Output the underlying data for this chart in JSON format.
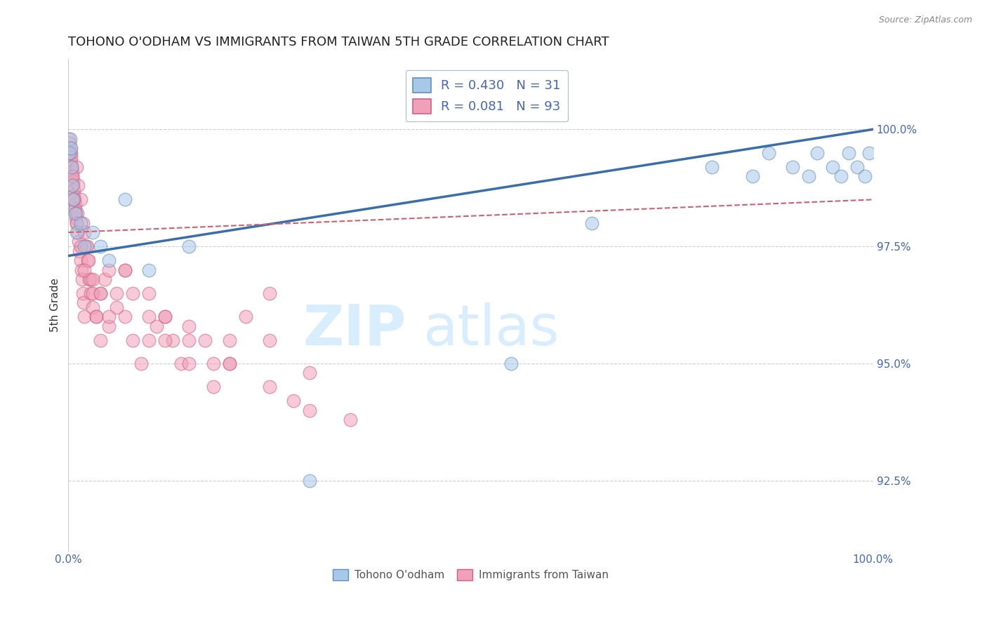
{
  "title": "TOHONO O'ODHAM VS IMMIGRANTS FROM TAIWAN 5TH GRADE CORRELATION CHART",
  "source_text": "Source: ZipAtlas.com",
  "ylabel": "5th Grade",
  "yright_ticks": [
    92.5,
    95.0,
    97.5,
    100.0
  ],
  "xmin": 0.0,
  "xmax": 100.0,
  "ymin": 91.0,
  "ymax": 101.5,
  "blue_color": "#A8C8E8",
  "pink_color": "#F0A0B8",
  "blue_edge_color": "#6090C0",
  "pink_edge_color": "#D06080",
  "blue_line_color": "#3A6EAA",
  "pink_line_color": "#D06070",
  "grid_color": "#AAAACC",
  "title_color": "#222222",
  "tick_color": "#4466BB",
  "watermark_color": "#D8EEFF",
  "legend_blue_label": "R = 0.430   N = 31",
  "legend_pink_label": "R = 0.081   N = 93",
  "blue_scatter_x": [
    0.1,
    0.2,
    0.3,
    0.4,
    0.5,
    0.6,
    0.8,
    1.0,
    1.5,
    2.0,
    3.0,
    4.0,
    5.0,
    7.0,
    10.0,
    15.0,
    30.0,
    55.0,
    65.0,
    80.0,
    85.0,
    87.0,
    90.0,
    92.0,
    93.0,
    95.0,
    96.0,
    97.0,
    98.0,
    99.0,
    99.5
  ],
  "blue_scatter_y": [
    99.5,
    99.8,
    99.6,
    99.2,
    98.8,
    98.5,
    98.2,
    97.8,
    98.0,
    97.5,
    97.8,
    97.5,
    97.2,
    98.5,
    97.0,
    97.5,
    92.5,
    95.0,
    98.0,
    99.2,
    99.0,
    99.5,
    99.2,
    99.0,
    99.5,
    99.2,
    99.0,
    99.5,
    99.2,
    99.0,
    99.5
  ],
  "pink_scatter_x": [
    0.1,
    0.15,
    0.2,
    0.25,
    0.3,
    0.35,
    0.4,
    0.45,
    0.5,
    0.55,
    0.6,
    0.65,
    0.7,
    0.75,
    0.8,
    0.85,
    0.9,
    0.95,
    1.0,
    1.1,
    1.2,
    1.3,
    1.4,
    1.5,
    1.6,
    1.7,
    1.8,
    1.9,
    2.0,
    2.2,
    2.4,
    2.6,
    2.8,
    3.0,
    3.5,
    4.0,
    4.5,
    5.0,
    6.0,
    7.0,
    8.0,
    9.0,
    10.0,
    11.0,
    12.0,
    13.0,
    14.0,
    15.0,
    17.0,
    20.0,
    22.0,
    25.0,
    1.0,
    1.2,
    1.5,
    1.8,
    2.0,
    2.3,
    2.5,
    2.8,
    3.0,
    3.5,
    4.0,
    5.0,
    6.0,
    7.0,
    8.0,
    10.0,
    12.0,
    15.0,
    18.0,
    20.0,
    25.0,
    30.0,
    0.3,
    0.5,
    0.7,
    1.0,
    1.5,
    2.0,
    3.0,
    4.0,
    5.0,
    7.0,
    10.0,
    12.0,
    15.0,
    18.0,
    20.0,
    25.0,
    28.0,
    30.0,
    35.0
  ],
  "pink_scatter_y": [
    99.8,
    99.7,
    99.6,
    99.5,
    99.4,
    99.3,
    99.2,
    99.1,
    99.0,
    98.9,
    98.8,
    98.7,
    98.6,
    98.5,
    98.4,
    98.3,
    98.2,
    98.1,
    98.0,
    98.2,
    97.8,
    97.6,
    97.4,
    97.2,
    97.0,
    96.8,
    96.5,
    96.3,
    96.0,
    97.5,
    97.2,
    96.8,
    96.5,
    96.2,
    96.0,
    96.5,
    96.8,
    97.0,
    96.5,
    96.0,
    95.5,
    95.0,
    95.5,
    95.8,
    96.0,
    95.5,
    95.0,
    95.8,
    95.5,
    95.0,
    96.0,
    96.5,
    99.2,
    98.8,
    98.5,
    98.0,
    97.8,
    97.5,
    97.2,
    96.8,
    96.5,
    96.0,
    95.5,
    95.8,
    96.2,
    97.0,
    96.5,
    96.0,
    95.5,
    95.0,
    94.5,
    95.0,
    95.5,
    94.8,
    99.5,
    99.0,
    98.5,
    98.0,
    97.5,
    97.0,
    96.8,
    96.5,
    96.0,
    97.0,
    96.5,
    96.0,
    95.5,
    95.0,
    95.5,
    94.5,
    94.2,
    94.0,
    93.8
  ],
  "blue_trendline_x0": 0.0,
  "blue_trendline_x1": 100.0,
  "blue_trendline_y0": 97.3,
  "blue_trendline_y1": 100.0,
  "pink_trendline_x0": 0.0,
  "pink_trendline_x1": 100.0,
  "pink_trendline_y0": 97.8,
  "pink_trendline_y1": 98.5
}
